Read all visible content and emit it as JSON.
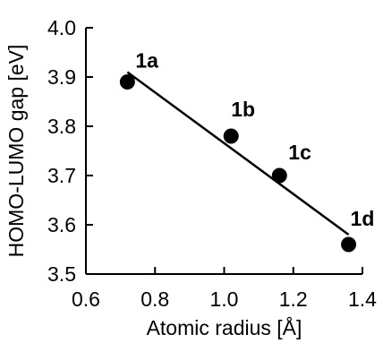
{
  "chart_data": {
    "type": "scatter",
    "xlabel": "Atomic radius [Å]",
    "ylabel": "HOMO-LUMO gap [eV]",
    "xlim": [
      0.6,
      1.4
    ],
    "ylim": [
      3.5,
      4.0
    ],
    "xticks": [
      0.6,
      0.8,
      1.0,
      1.2,
      1.4
    ],
    "yticks": [
      3.5,
      3.6,
      3.7,
      3.8,
      3.9,
      4.0
    ],
    "xtick_labels": [
      "0.6",
      "0.8",
      "1.0",
      "1.2",
      "1.4"
    ],
    "ytick_labels": [
      "3.5",
      "3.6",
      "3.7",
      "3.8",
      "3.9",
      "4.0"
    ],
    "grid": false,
    "series": [
      {
        "points": [
          {
            "label": "1a",
            "x": 0.72,
            "y": 3.89
          },
          {
            "label": "1b",
            "x": 1.02,
            "y": 3.78
          },
          {
            "label": "1c",
            "x": 1.16,
            "y": 3.7
          },
          {
            "label": "1d",
            "x": 1.36,
            "y": 3.56
          }
        ]
      }
    ],
    "fit_line": {
      "x": [
        0.72,
        1.36
      ],
      "y": [
        3.91,
        3.58
      ]
    },
    "colors": {
      "marker": "#000000",
      "line": "#000000",
      "axis": "#000000"
    }
  }
}
